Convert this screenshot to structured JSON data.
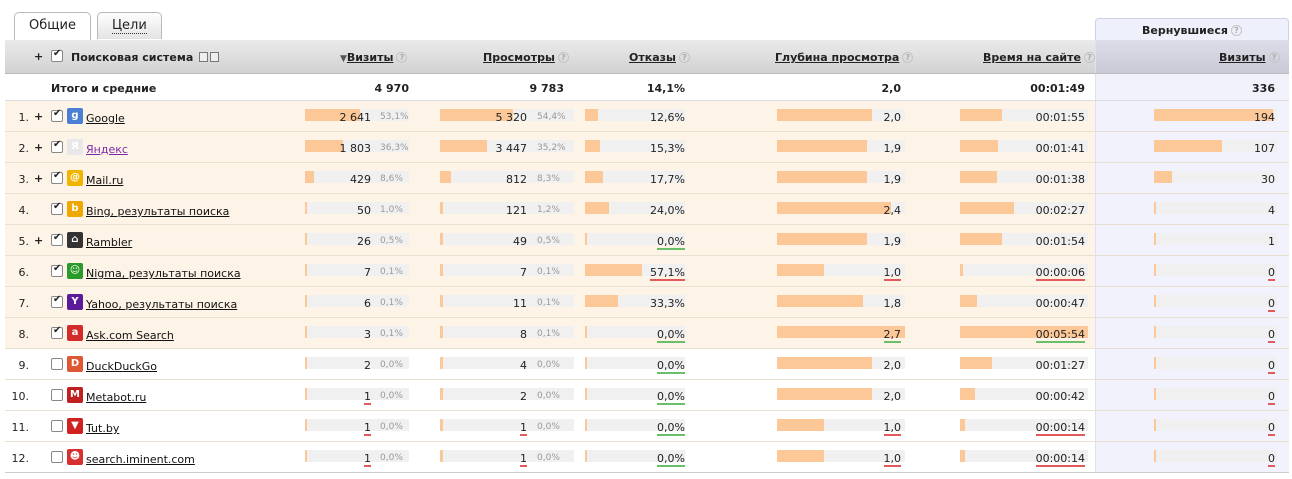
{
  "tabs": [
    {
      "label": "Общие",
      "active": true
    },
    {
      "label": "Цели",
      "active": false
    }
  ],
  "returning_header": "Вернувшиеся",
  "headers": {
    "engine": "Поисковая система",
    "visits": "Визиты",
    "views": "Просмотры",
    "bounces": "Отказы",
    "depth": "Глубина просмотра",
    "time": "Время на сайте",
    "ret_visits": "Визиты"
  },
  "totals": {
    "label": "Итого и средние",
    "visits": "4 970",
    "views": "9 783",
    "bounces": "14,1%",
    "depth": "2,0",
    "time": "00:01:49",
    "ret_visits": "336"
  },
  "rows": [
    {
      "num": "1.",
      "plus": "+",
      "checked": true,
      "icon": "google-icon",
      "icon_color": "#4a7fd4",
      "icon_glyph": "g",
      "name": "Google",
      "name_color": "#111",
      "visits": "2 641",
      "visits_pct": "53,1%",
      "visits_frac": 0.531,
      "views": "5 320",
      "views_pct": "54,4%",
      "views_frac": 0.544,
      "bounces": "12,6%",
      "bounces_frac": 0.126,
      "depth": "2,0",
      "depth_frac": 0.74,
      "time": "00:01:55",
      "time_frac": 0.33,
      "ret": "194",
      "ret_frac": 0.97,
      "sel": true
    },
    {
      "num": "2.",
      "plus": "+",
      "checked": true,
      "icon": "yandex-icon",
      "icon_color": "#e8e8e8",
      "icon_glyph": "Я",
      "name": "Яндекс",
      "name_color": "#7a2aa8",
      "visits": "1 803",
      "visits_pct": "36,3%",
      "visits_frac": 0.363,
      "views": "3 447",
      "views_pct": "35,2%",
      "views_frac": 0.352,
      "bounces": "15,3%",
      "bounces_frac": 0.153,
      "depth": "1,9",
      "depth_frac": 0.7,
      "time": "00:01:41",
      "time_frac": 0.3,
      "ret": "107",
      "ret_frac": 0.55,
      "sel": true
    },
    {
      "num": "3.",
      "plus": "+",
      "checked": true,
      "icon": "mailru-icon",
      "icon_color": "#f2b400",
      "icon_glyph": "@",
      "name": "Mail.ru",
      "name_color": "#111",
      "visits": "429",
      "visits_pct": "8,6%",
      "visits_frac": 0.086,
      "views": "812",
      "views_pct": "8,3%",
      "views_frac": 0.083,
      "bounces": "17,7%",
      "bounces_frac": 0.177,
      "depth": "1,9",
      "depth_frac": 0.7,
      "time": "00:01:38",
      "time_frac": 0.29,
      "ret": "30",
      "ret_frac": 0.15,
      "sel": true
    },
    {
      "num": "4.",
      "plus": "",
      "checked": true,
      "icon": "bing-icon",
      "icon_color": "#f0a800",
      "icon_glyph": "b",
      "name": "Bing, результаты поиска",
      "name_color": "#111",
      "visits": "50",
      "visits_pct": "1,0%",
      "visits_frac": 0.01,
      "views": "121",
      "views_pct": "1,2%",
      "views_frac": 0.012,
      "bounces": "24,0%",
      "bounces_frac": 0.24,
      "depth": "2,4",
      "depth_frac": 0.89,
      "time": "00:02:27",
      "time_frac": 0.42,
      "ret": "4",
      "ret_frac": 0.02,
      "sel": true
    },
    {
      "num": "5.",
      "plus": "+",
      "checked": true,
      "icon": "rambler-icon",
      "icon_color": "#333",
      "icon_glyph": "⌂",
      "name": "Rambler",
      "name_color": "#111",
      "visits": "26",
      "visits_pct": "0,5%",
      "visits_frac": 0.005,
      "views": "49",
      "views_pct": "0,5%",
      "views_frac": 0.005,
      "bounces": "0,0%",
      "bounces_frac": 0.0,
      "depth": "1,9",
      "depth_frac": 0.7,
      "time": "00:01:54",
      "time_frac": 0.33,
      "ret": "1",
      "ret_frac": 0.01,
      "sel": true,
      "bounces_ul": "green"
    },
    {
      "num": "6.",
      "plus": "",
      "checked": true,
      "icon": "nigma-icon",
      "icon_color": "#2a9a2a",
      "icon_glyph": "☺",
      "name": "Nigma, результаты поиска",
      "name_color": "#111",
      "visits": "7",
      "visits_pct": "0,1%",
      "visits_frac": 0.001,
      "views": "7",
      "views_pct": "0,1%",
      "views_frac": 0.001,
      "bounces": "57,1%",
      "bounces_frac": 0.571,
      "depth": "1,0",
      "depth_frac": 0.37,
      "time": "00:00:06",
      "time_frac": 0.02,
      "ret": "0",
      "ret_frac": 0.0,
      "sel": true,
      "bounces_ul": "red",
      "depth_ul": "red",
      "time_ul": "red",
      "ret_ul": "red"
    },
    {
      "num": "7.",
      "plus": "",
      "checked": true,
      "icon": "yahoo-icon",
      "icon_color": "#5a1a9a",
      "icon_glyph": "Y",
      "name": "Yahoo, результаты поиска",
      "name_color": "#111",
      "visits": "6",
      "visits_pct": "0,1%",
      "visits_frac": 0.001,
      "views": "11",
      "views_pct": "0,1%",
      "views_frac": 0.001,
      "bounces": "33,3%",
      "bounces_frac": 0.333,
      "depth": "1,8",
      "depth_frac": 0.67,
      "time": "00:00:47",
      "time_frac": 0.13,
      "ret": "0",
      "ret_frac": 0.0,
      "sel": true,
      "ret_ul": "red"
    },
    {
      "num": "8.",
      "plus": "",
      "checked": true,
      "icon": "ask-icon",
      "icon_color": "#d32a2a",
      "icon_glyph": "a",
      "name": "Ask.com Search",
      "name_color": "#111",
      "visits": "3",
      "visits_pct": "0,1%",
      "visits_frac": 0.001,
      "views": "8",
      "views_pct": "0,1%",
      "views_frac": 0.001,
      "bounces": "0,0%",
      "bounces_frac": 0.0,
      "depth": "2,7",
      "depth_frac": 1.0,
      "time": "00:05:54",
      "time_frac": 1.0,
      "ret": "0",
      "ret_frac": 0.0,
      "sel": true,
      "bounces_ul": "green",
      "depth_ul": "green",
      "time_ul": "green",
      "ret_ul": "red"
    },
    {
      "num": "9.",
      "plus": "",
      "checked": false,
      "icon": "duckduckgo-icon",
      "icon_color": "#de5833",
      "icon_glyph": "D",
      "name": "DuckDuckGo",
      "name_color": "#111",
      "visits": "2",
      "visits_pct": "0,0%",
      "visits_frac": 0.0,
      "views": "4",
      "views_pct": "0,0%",
      "views_frac": 0.0,
      "bounces": "0,0%",
      "bounces_frac": 0.0,
      "depth": "2,0",
      "depth_frac": 0.74,
      "time": "00:01:27",
      "time_frac": 0.25,
      "ret": "0",
      "ret_frac": 0.0,
      "sel": false,
      "bounces_ul": "green",
      "ret_ul": "red"
    },
    {
      "num": "10.",
      "plus": "",
      "checked": false,
      "icon": "metabot-icon",
      "icon_color": "#c02020",
      "icon_glyph": "M",
      "name": "Metabot.ru",
      "name_color": "#111",
      "visits": "1",
      "visits_pct": "0,0%",
      "visits_frac": 0.0,
      "views": "2",
      "views_pct": "0,0%",
      "views_frac": 0.0,
      "bounces": "0,0%",
      "bounces_frac": 0.0,
      "depth": "2,0",
      "depth_frac": 0.74,
      "time": "00:00:42",
      "time_frac": 0.12,
      "ret": "0",
      "ret_frac": 0.0,
      "sel": false,
      "visits_ul": "red",
      "bounces_ul": "green",
      "ret_ul": "red"
    },
    {
      "num": "11.",
      "plus": "",
      "checked": false,
      "icon": "tutby-icon",
      "icon_color": "#d02020",
      "icon_glyph": "▼",
      "name": "Tut.by",
      "name_color": "#111",
      "visits": "1",
      "visits_pct": "0,0%",
      "visits_frac": 0.0,
      "views": "1",
      "views_pct": "0,0%",
      "views_frac": 0.0,
      "bounces": "0,0%",
      "bounces_frac": 0.0,
      "depth": "1,0",
      "depth_frac": 0.37,
      "time": "00:00:14",
      "time_frac": 0.04,
      "ret": "0",
      "ret_frac": 0.0,
      "sel": false,
      "visits_ul": "red",
      "views_ul": "red",
      "bounces_ul": "green",
      "depth_ul": "red",
      "time_ul": "red",
      "ret_ul": "red"
    },
    {
      "num": "12.",
      "plus": "",
      "checked": false,
      "icon": "iminent-icon",
      "icon_color": "#d83030",
      "icon_glyph": "☻",
      "name": "search.iminent.com",
      "name_color": "#111",
      "visits": "1",
      "visits_pct": "0,0%",
      "visits_frac": 0.0,
      "views": "1",
      "views_pct": "0,0%",
      "views_frac": 0.0,
      "bounces": "0,0%",
      "bounces_frac": 0.0,
      "depth": "1,0",
      "depth_frac": 0.37,
      "time": "00:00:14",
      "time_frac": 0.04,
      "ret": "0",
      "ret_frac": 0.0,
      "sel": false,
      "visits_ul": "red",
      "views_ul": "red",
      "bounces_ul": "green",
      "depth_ul": "red",
      "time_ul": "red",
      "ret_ul": "red"
    }
  ]
}
